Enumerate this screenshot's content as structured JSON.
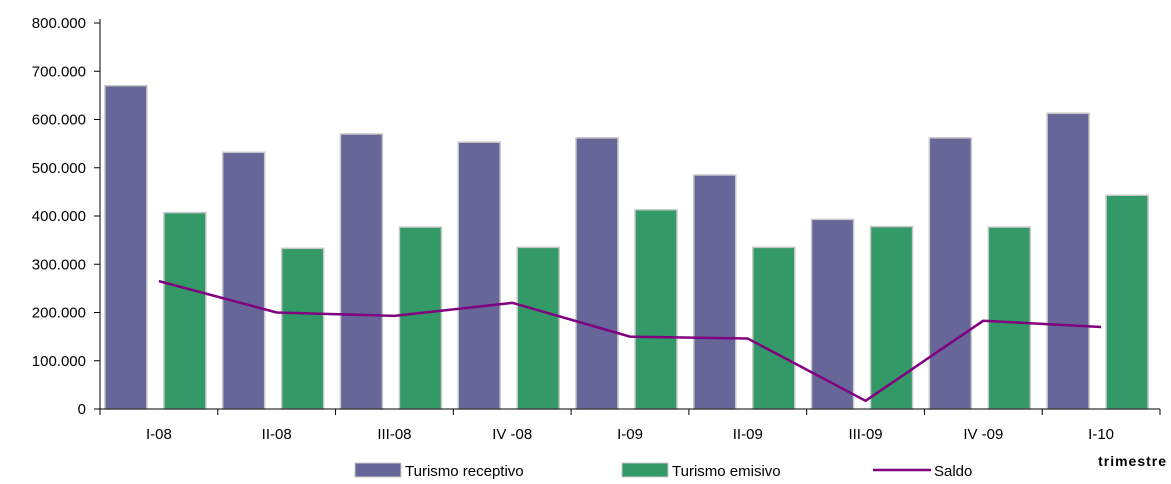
{
  "chart_data": {
    "type": "bar",
    "title": "",
    "xlabel": "trimestre",
    "ylabel": "",
    "ylim": [
      0,
      800000
    ],
    "ytick_values": [
      0,
      100000,
      200000,
      300000,
      400000,
      500000,
      600000,
      700000,
      800000
    ],
    "ytick_labels": [
      "0",
      "100.000",
      "200.000",
      "300.000",
      "400.000",
      "500.000",
      "600.000",
      "700.000",
      "800.000"
    ],
    "categories": [
      "I-08",
      "II-08",
      "III-08",
      "IV -08",
      "I-09",
      "II-09",
      "III-09",
      "IV -09",
      "I-10"
    ],
    "series": [
      {
        "name": "Turismo receptivo",
        "kind": "bar",
        "color": "#666699",
        "values": [
          670000,
          532000,
          570000,
          553000,
          562000,
          485000,
          393000,
          562000,
          613000
        ]
      },
      {
        "name": "Turismo emisivo",
        "kind": "bar",
        "color": "#339966",
        "values": [
          407000,
          333000,
          377000,
          335000,
          413000,
          335000,
          378000,
          377000,
          443000
        ]
      },
      {
        "name": "Saldo",
        "kind": "line",
        "color": "#800080",
        "values": [
          265000,
          200000,
          193000,
          220000,
          150000,
          146000,
          17000,
          183000,
          170000
        ]
      }
    ],
    "grid": false,
    "legend": "bottom"
  }
}
